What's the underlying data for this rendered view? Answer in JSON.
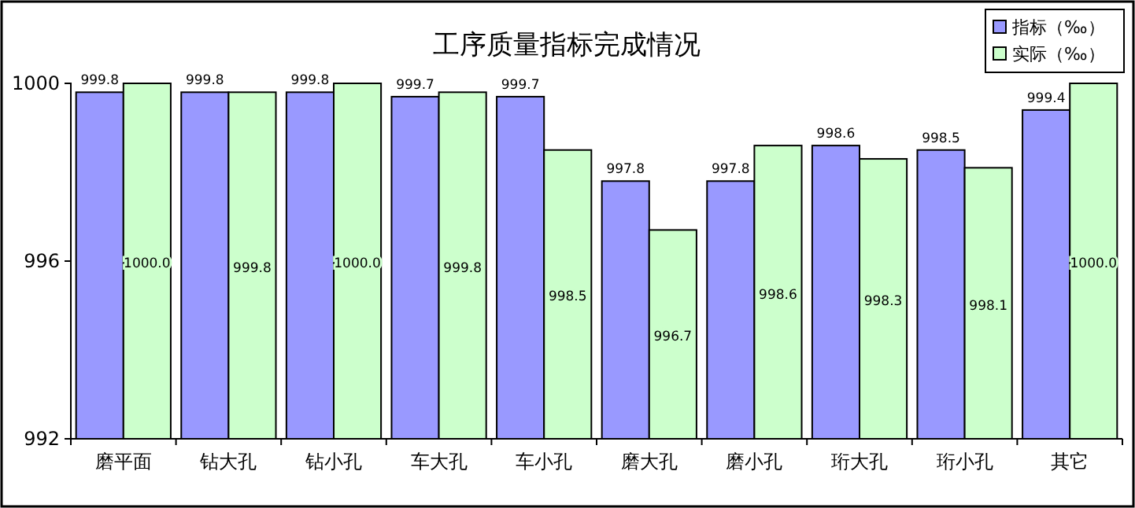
{
  "chart_data": {
    "type": "bar",
    "title": "工序质量指标完成情况",
    "categories": [
      "磨平面",
      "钻大孔",
      "钻小孔",
      "车大孔",
      "车小孔",
      "磨大孔",
      "磨小孔",
      "珩大孔",
      "珩小孔",
      "其它"
    ],
    "series": [
      {
        "name": "指标（‰）",
        "color": "#9999ff",
        "values": [
          999.8,
          999.8,
          999.8,
          999.7,
          999.7,
          997.8,
          997.8,
          998.6,
          998.5,
          999.4
        ],
        "value_labels": [
          "999.8",
          "999.8",
          "999.8",
          "999.7",
          "999.7",
          "997.8",
          "997.8",
          "998.6",
          "998.5",
          "999.4"
        ]
      },
      {
        "name": "实际（‰）",
        "color": "#ccffcc",
        "values": [
          1000.0,
          999.8,
          1000.0,
          999.8,
          998.5,
          996.7,
          998.6,
          998.3,
          998.1,
          1000.0
        ],
        "value_labels": [
          "1000.0",
          "999.8",
          "1000.0",
          "999.8",
          "998.5",
          "996.7",
          "998.6",
          "998.3",
          "998.1",
          "1000.0"
        ]
      }
    ],
    "ylim": [
      992,
      1000
    ],
    "yticks": [
      992,
      996,
      1000
    ],
    "legend": "top right",
    "grid": false
  }
}
